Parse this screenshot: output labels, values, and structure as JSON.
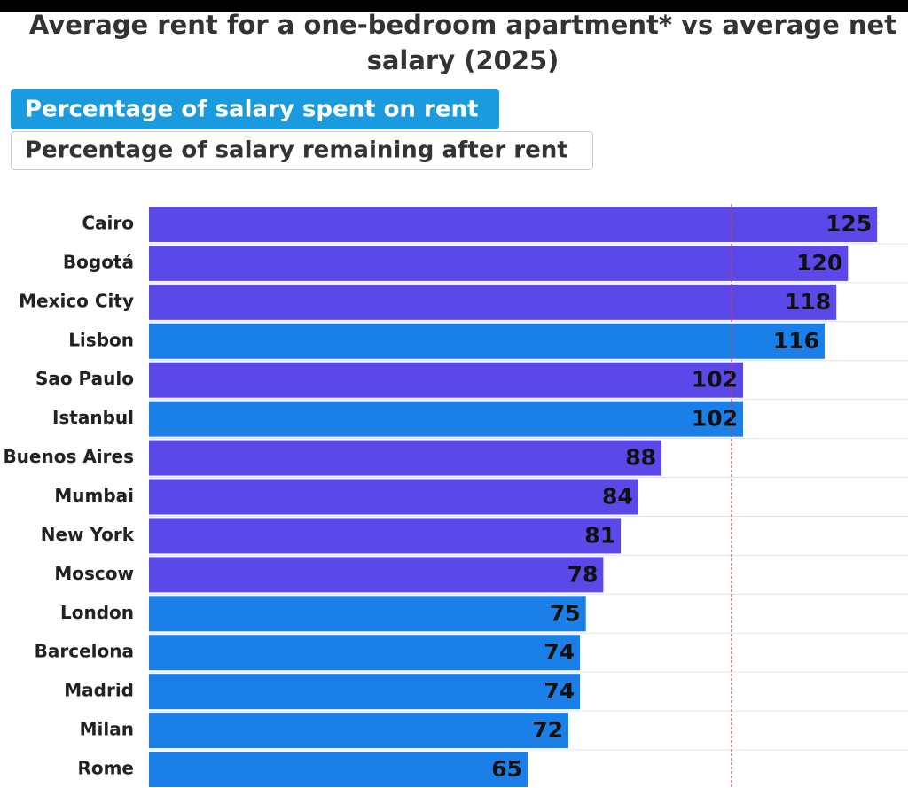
{
  "chart_data": {
    "type": "hbar",
    "title": "Average rent for a one-bedroom apartment* vs average net salary (2025)",
    "toggles": [
      "Percentage of salary spent on rent",
      "Percentage of salary remaining after rent"
    ],
    "categories": [
      "Cairo",
      "Bogotá",
      "Mexico City",
      "Lisbon",
      "Sao Paulo",
      "Istanbul",
      "Buenos Aires",
      "Mumbai",
      "New York",
      "Moscow",
      "London",
      "Barcelona",
      "Madrid",
      "Milan",
      "Rome"
    ],
    "values": [
      125,
      120,
      118,
      116,
      102,
      102,
      88,
      84,
      81,
      78,
      75,
      74,
      74,
      72,
      65
    ],
    "colors": [
      "#5b48e8",
      "#5b48e8",
      "#5b48e8",
      "#1a80e8",
      "#5b48e8",
      "#1a80e8",
      "#5b48e8",
      "#5b48e8",
      "#5b48e8",
      "#5b48e8",
      "#1a80e8",
      "#1a80e8",
      "#1a80e8",
      "#1a80e8",
      "#1a80e8"
    ],
    "xlim": [
      0,
      130
    ],
    "reference_line": 100,
    "reference_color": "#d83a3a"
  }
}
